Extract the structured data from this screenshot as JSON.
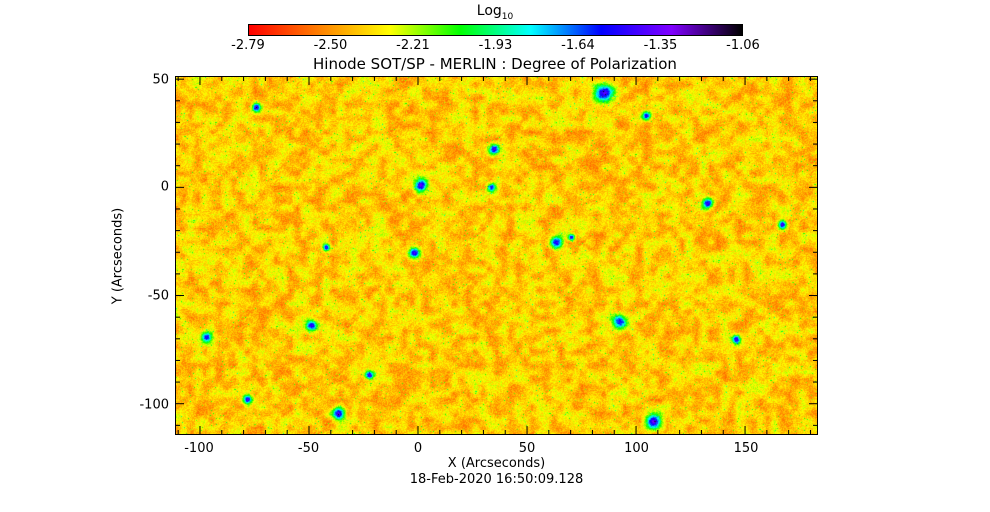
{
  "colorbar": {
    "title_main": "Log",
    "title_sub": "10",
    "ticks": [
      "-2.79",
      "-2.50",
      "-2.21",
      "-1.93",
      "-1.64",
      "-1.35",
      "-1.06"
    ],
    "range": [
      -2.79,
      -1.06
    ]
  },
  "chart_data": {
    "type": "heatmap",
    "title": "Hinode SOT/SP - MERLIN : Degree of Polarization",
    "xlabel": "X (Arcseconds)",
    "ylabel": "Y (Arcseconds)",
    "xlim": [
      -111,
      183
    ],
    "ylim": [
      -114,
      51
    ],
    "xticks": [
      -100,
      -50,
      0,
      50,
      100,
      150
    ],
    "yticks": [
      50,
      0,
      -50,
      -100
    ],
    "colormap": "rainbow-red-to-black",
    "colors": [
      "#ff0000",
      "#ff8000",
      "#ffff00",
      "#00ff00",
      "#00ffff",
      "#0000ff",
      "#8000ff",
      "#000000"
    ],
    "timestamp": "18-Feb-2020 16:50:09.128"
  }
}
